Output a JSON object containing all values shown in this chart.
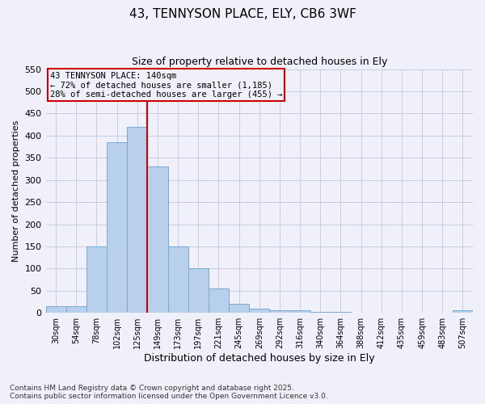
{
  "title1": "43, TENNYSON PLACE, ELY, CB6 3WF",
  "title2": "Size of property relative to detached houses in Ely",
  "xlabel": "Distribution of detached houses by size in Ely",
  "ylabel": "Number of detached properties",
  "categories": [
    "30sqm",
    "54sqm",
    "78sqm",
    "102sqm",
    "125sqm",
    "149sqm",
    "173sqm",
    "197sqm",
    "221sqm",
    "245sqm",
    "269sqm",
    "292sqm",
    "316sqm",
    "340sqm",
    "364sqm",
    "388sqm",
    "412sqm",
    "435sqm",
    "459sqm",
    "483sqm",
    "507sqm"
  ],
  "values": [
    15,
    15,
    150,
    385,
    420,
    330,
    150,
    100,
    55,
    20,
    10,
    5,
    5,
    3,
    2,
    1,
    1,
    1,
    1,
    1,
    5
  ],
  "bar_color": "#b8d0eb",
  "bar_edge_color": "#7aaad0",
  "property_line_x": 4.5,
  "annotation_line1": "43 TENNYSON PLACE: 140sqm",
  "annotation_line2": "← 72% of detached houses are smaller (1,185)",
  "annotation_line3": "28% of semi-detached houses are larger (455) →",
  "ylim": [
    0,
    550
  ],
  "yticks": [
    0,
    50,
    100,
    150,
    200,
    250,
    300,
    350,
    400,
    450,
    500,
    550
  ],
  "vline_color": "#cc0000",
  "annotation_box_color": "#cc0000",
  "footnote1": "Contains HM Land Registry data © Crown copyright and database right 2025.",
  "footnote2": "Contains public sector information licensed under the Open Government Licence v3.0.",
  "bg_color": "#f0f0fa",
  "grid_color": "#c8cce0"
}
